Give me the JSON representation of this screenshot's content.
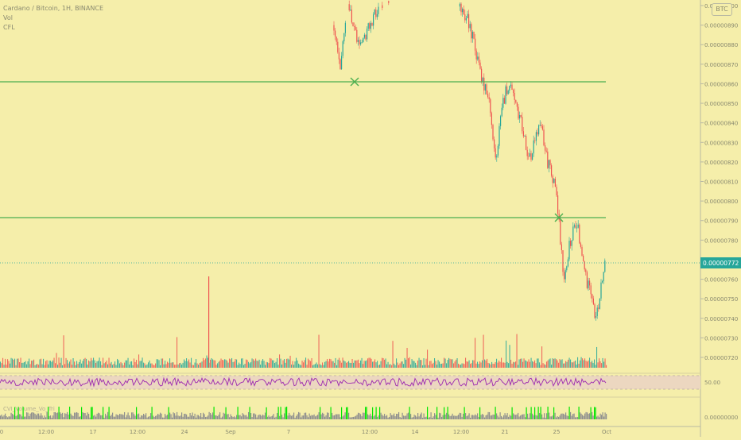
{
  "legend": {
    "title": "Cardano / Bitcoin, 1H, BINANCE",
    "line2": "Vol",
    "line3": "CFL",
    "vol_indicator_label": "CVI_Volume_Vo_Tri"
  },
  "badge": "BTC",
  "colors": {
    "background": "#f5eeaa",
    "up": "#26a69a",
    "down": "#ef5350",
    "level_line": "#4caf50",
    "rsi_line": "#9c27b0",
    "rsi_band": "#ecd7c0",
    "price_tag": "#26a69a",
    "vol_high": "#00e600",
    "vol_normal": "#8f8f8f"
  },
  "chart_data": {
    "type": "candlestick",
    "title": "Cardano / Bitcoin, 1H, BINANCE",
    "y_axis": {
      "min": 7.2e-06,
      "max": 9e-06,
      "ticks": [
        "0.00000900",
        "0.00000890",
        "0.00000880",
        "0.00000870",
        "0.00000860",
        "0.00000850",
        "0.00000840",
        "0.00000830",
        "0.00000820",
        "0.00000810",
        "0.00000800",
        "0.00000790",
        "0.00000780",
        "0.00000770",
        "0.00000760",
        "0.00000750",
        "0.00000740",
        "0.00000730",
        "0.00000720"
      ]
    },
    "x_axis": {
      "ticks": [
        "0",
        "12:00",
        "17",
        "12:00",
        "24",
        "Sep",
        "7",
        "12:00",
        "14",
        "12:00",
        "21",
        "25",
        "Oct"
      ]
    },
    "current_price": "0.00000772",
    "horizontal_levels": [
      8.72e-06,
      7.99e-06
    ],
    "price_path": [
      {
        "x": 0.58,
        "y": 8.9e-06
      },
      {
        "x": 0.59,
        "y": 8.7e-06
      },
      {
        "x": 0.6,
        "y": 9e-06
      },
      {
        "x": 0.62,
        "y": 8.8e-06
      },
      {
        "x": 0.65,
        "y": 9e-06
      },
      {
        "x": 0.7,
        "y": 9.1e-06
      },
      {
        "x": 0.76,
        "y": 9.1e-06
      },
      {
        "x": 0.79,
        "y": 8.9e-06
      },
      {
        "x": 0.81,
        "y": 8.6e-06
      },
      {
        "x": 0.82,
        "y": 8.5e-06
      },
      {
        "x": 0.83,
        "y": 8.2e-06
      },
      {
        "x": 0.84,
        "y": 8.5e-06
      },
      {
        "x": 0.85,
        "y": 8.6e-06
      },
      {
        "x": 0.87,
        "y": 8.4e-06
      },
      {
        "x": 0.88,
        "y": 8.2e-06
      },
      {
        "x": 0.9,
        "y": 8.4e-06
      },
      {
        "x": 0.91,
        "y": 8.2e-06
      },
      {
        "x": 0.92,
        "y": 8.1e-06
      },
      {
        "x": 0.925,
        "y": 8e-06
      },
      {
        "x": 0.935,
        "y": 7.6e-06
      },
      {
        "x": 0.945,
        "y": 7.8e-06
      },
      {
        "x": 0.955,
        "y": 7.9e-06
      },
      {
        "x": 0.97,
        "y": 7.6e-06
      },
      {
        "x": 0.985,
        "y": 7.4e-06
      },
      {
        "x": 1.0,
        "y": 7.72e-06
      }
    ],
    "rsi_label": "50.00",
    "rsi_bottom_label": "0.00000000"
  }
}
